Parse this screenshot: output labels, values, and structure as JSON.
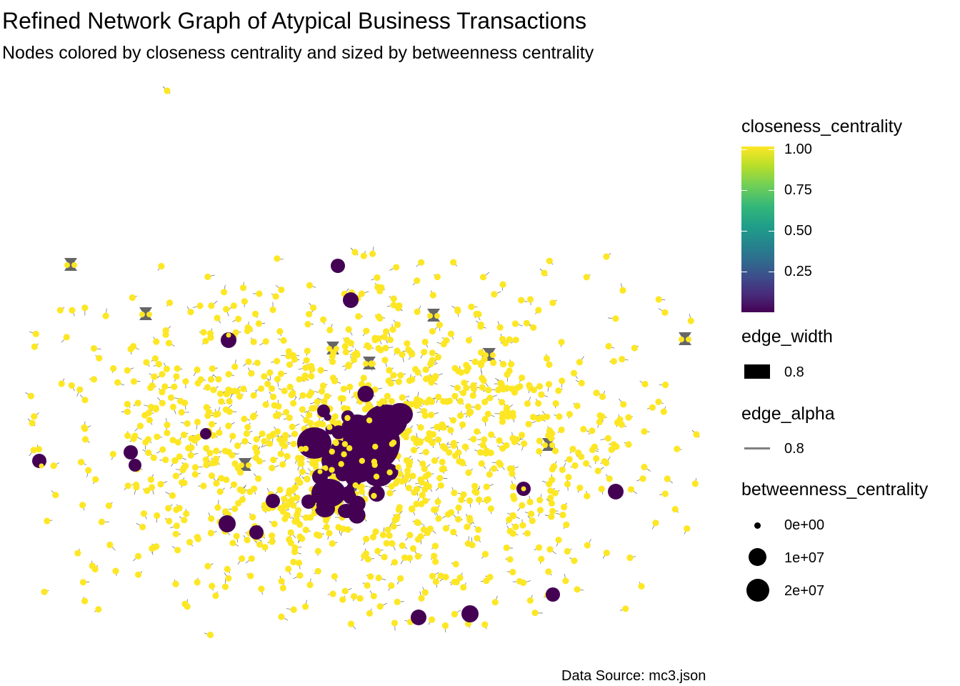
{
  "title": "Refined Network Graph of Atypical Business Transactions",
  "subtitle": "Nodes colored by closeness centrality and sized by betweenness centrality",
  "caption": "Data Source: mc3.json",
  "colors": {
    "low_closeness": "#440154",
    "high_closeness": "#FDE725",
    "edge": "#555555",
    "hub_edge": "#666666"
  },
  "legend": {
    "closeness": {
      "title": "closeness_centrality",
      "labels": [
        "1.00",
        "0.75",
        "0.50",
        "0.25"
      ]
    },
    "edge_width": {
      "title": "edge_width",
      "label": "0.8"
    },
    "edge_alpha": {
      "title": "edge_alpha",
      "label": "0.8"
    },
    "betweenness": {
      "title": "betweenness_centrality",
      "labels": [
        "0e+00",
        "1e+07",
        "2e+07"
      ]
    }
  },
  "diagram": {
    "type": "network",
    "layout": "force-directed",
    "node_color_variable": "closeness_centrality",
    "node_size_variable": "betweenness_centrality",
    "closeness_range": [
      0,
      1
    ],
    "betweenness_range": [
      0,
      20000000
    ]
  }
}
